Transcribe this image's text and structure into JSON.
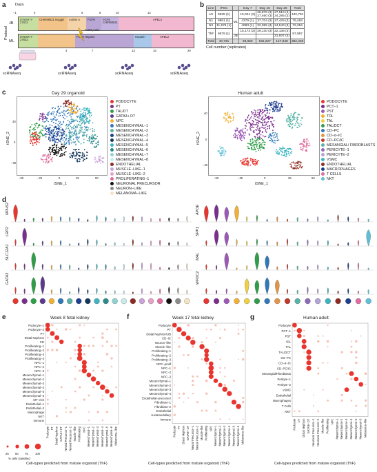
{
  "panels": {
    "a": "a",
    "b": "b",
    "c": "c",
    "d": "d",
    "e": "e",
    "f": "f",
    "g": "g"
  },
  "panel_a": {
    "days_label": "Days",
    "protocol_label": "Protocol",
    "day_ticks_top": [
      "−1",
      "0",
      "6",
      "8",
      "10",
      "14"
    ],
    "day_ticks_bottom": [
      "4",
      "7",
      "13",
      "15",
      "29"
    ],
    "rows": [
      {
        "name": "JB",
        "steps": [
          "mTeSR Y-27632",
          "CHIR99021 Noggin",
          "Activin A",
          "FGF9",
          "FGF9 CHIR99021",
          "APEL2"
        ]
      },
      {
        "name": "ML",
        "steps": [
          "mTeSR Y-27632",
          "FGF9 Heparin",
          "Heparin",
          "APEL2"
        ]
      }
    ],
    "chir_pulse": "CHIR pulse",
    "scrna_labels": [
      "scRNAseq",
      "scRNAseq",
      "scRNAseq",
      "scRNAseq"
    ]
  },
  "panel_b": {
    "headers": [
      "Line",
      "iPSC",
      "",
      "Day 7",
      "Day 15",
      "Day 29",
      "Total"
    ],
    "rows": [
      {
        "line": "AS",
        "ipsc": "9625 (1)",
        "proto": "",
        "d7": "15,024 (2)",
        "d15": [
          "28,878 (3)",
          "27,460 (3)"
        ],
        "d29": [
          "27,519 (3)",
          "24,285 (3)"
        ],
        "total": "132,791"
      },
      {
        "line": "N1",
        "ipsc": "9951 (1)",
        "proto": "ML",
        "d7": "4379 (1)",
        "d15": [
          "37,704 (3)"
        ],
        "d29": [
          "27,429 (3)"
        ],
        "total": "79,463"
      },
      {
        "line": "N2",
        "ipsc": "11,576 (1)",
        "proto": "",
        "d7": "4083 (1)",
        "d15": [
          "32,055 (3)"
        ],
        "d29": [
          "24,540 (3)"
        ],
        "total": "72,254"
      },
      {
        "line": "ThF",
        "ipsc": "9579 (1)",
        "proto": "",
        "d7": "15,173 (2)",
        "d15": [
          "29,130 (3)"
        ],
        "d29": [
          "22,138 (3)"
        ],
        "total": "97,957"
      },
      {
        "line": "",
        "ipsc": "",
        "proto": "JB",
        "d7": "",
        "d15": [
          ""
        ],
        "d29": [
          "21,937 (3)"
        ],
        "total": ""
      }
    ],
    "total_row": [
      "Total",
      "40,731",
      "38,659",
      "155,227",
      "147,848",
      "382,465"
    ],
    "caption": "Cell number (replicates)"
  },
  "panel_c": {
    "left_title": "Day 29 organoid",
    "right_title": "Human adult",
    "xlabel": "tSNE_1",
    "ylabel": "tSNE_2",
    "left_xticks": [
      "−50",
      "−25",
      "0",
      "25",
      "50"
    ],
    "left_yticks": [
      "30",
      "0",
      "−30"
    ],
    "right_xticks": [
      "−50",
      "−25",
      "0",
      "25",
      "50"
    ],
    "right_yticks": [
      "40",
      "0",
      "−40"
    ],
    "left_legend": [
      {
        "label": "PODOCYTE",
        "color": "#e8352e"
      },
      {
        "label": "PT",
        "color": "#7a2f8e"
      },
      {
        "label": "TAL/DT",
        "color": "#2e9e48"
      },
      {
        "label": "GATA3+ DT",
        "color": "#5b3a8e"
      },
      {
        "label": "NPC",
        "color": "#f2b035"
      },
      {
        "label": "MESENCHYMAL−1",
        "color": "#2f78b9"
      },
      {
        "label": "MESENCHYMAL−2",
        "color": "#56b3a5"
      },
      {
        "label": "MESENCHYMAL−3",
        "color": "#1e3e8f"
      },
      {
        "label": "MESENCHYMAL−4",
        "color": "#15375c"
      },
      {
        "label": "MESENCHYMAL−5",
        "color": "#3cb5c0"
      },
      {
        "label": "MESENCHYMAL−6",
        "color": "#2b8a8a"
      },
      {
        "label": "MESENCHYMAL−7",
        "color": "#8fd3d3"
      },
      {
        "label": "MESENCHYMAL−8",
        "color": "#c7ecee"
      },
      {
        "label": "ENDOTHELIAL",
        "color": "#8e2a20"
      },
      {
        "label": "MUSCLE−LIKE−1",
        "color": "#c9a3d9"
      },
      {
        "label": "MUSCLE−LIKE−2",
        "color": "#e7a0c8"
      },
      {
        "label": "PROLIFERATING−1",
        "color": "#e06c9f"
      },
      {
        "label": "NEURONAL PRECURSOR",
        "color": "#111111"
      },
      {
        "label": "NEURON−LIKE",
        "color": "#8a8a8a"
      },
      {
        "label": "MELANOMA−LIKE",
        "color": "#f4e4c1"
      }
    ],
    "right_legend": [
      {
        "label": "PODOCYTE",
        "color": "#e8352e"
      },
      {
        "label": "PCT−1",
        "color": "#7a2f8e"
      },
      {
        "label": "PST",
        "color": "#9b59b6"
      },
      {
        "label": "TDL",
        "color": "#f2b035"
      },
      {
        "label": "TAL",
        "color": "#f0d040"
      },
      {
        "label": "TAL/DCT",
        "color": "#2e9e48"
      },
      {
        "label": "CD−PC",
        "color": "#2f78b9"
      },
      {
        "label": "CD−α−IC",
        "color": "#e39444"
      },
      {
        "label": "CD−PC/IC",
        "color": "#c0392b"
      },
      {
        "label": "MESANGIAL/ FIBROBLASTS",
        "color": "#56b3a5"
      },
      {
        "label": "PERICYTE−1",
        "color": "#8e6bb8"
      },
      {
        "label": "PERICYTE−2",
        "color": "#b4a3d6"
      },
      {
        "label": "VSMC",
        "color": "#3cb5c0"
      },
      {
        "label": "ENDOTHELIAL",
        "color": "#8e2a20"
      },
      {
        "label": "MACROPHAGES",
        "color": "#1e3e8f"
      },
      {
        "label": "T CELLS",
        "color": "#e06c9f"
      },
      {
        "label": "NKT",
        "color": "#5ec0d8"
      }
    ]
  },
  "panel_d": {
    "left_genes": [
      "NPHS2",
      "LRP2",
      "SLC12A1",
      "GATA3"
    ],
    "right_genes": [
      "APOE",
      "SPP1",
      "MAL",
      "WFDC2"
    ]
  },
  "panel_e": {
    "title": "Week 8 fetal kidney",
    "rows": [
      "Podocyte−1",
      "Podocyte−2",
      "PT",
      "Distal Nephron",
      "CD",
      "Proliferating−1",
      "Proliferating−2",
      "Proliferating−3",
      "Proliferating−4",
      "NPC−1",
      "NPC−2",
      "NPC−3",
      "Mesenchymal−1",
      "Mesenchymal−2",
      "Mesenchymal−3",
      "Mesenchymal−4",
      "Mesenchymal−5",
      "Mesenchymal−6",
      "MT−rich",
      "Endothelial−1",
      "Endothelial−2",
      "Macrophage",
      "NKT",
      "Immune"
    ],
    "cols": [
      "Podocyte",
      "PT",
      "Distal Nephron",
      "GATA3+ DT",
      "Neural Precursor−1",
      "Neural Precursor−2",
      "Muscle−like",
      "Proliferating",
      "NPC",
      "Mesenchymal−1",
      "Mesenchymal−2",
      "Mesenchymal−3",
      "Mesenchymal−4",
      "Mesenchymal−5",
      "Mesenchymal−6",
      "Melanoma−like"
    ],
    "xlabel": "Cell-types predicted from mature organoid (ThF)",
    "size_legend_values": [
      "25",
      "50",
      "75",
      "100"
    ],
    "size_legend_caption": "% cells classified"
  },
  "panel_f": {
    "title": "Week 17 fetal kidney",
    "rows": [
      "Podocyte",
      "PT",
      "Distal Nephron/UB",
      "CD−IC",
      "Neuron−like",
      "Muscle−like",
      "Proliferating−1",
      "Proliferating−2",
      "Proliferating−3",
      "NPC−prolif",
      "NPC−1",
      "NPC−2",
      "NPC−3",
      "Mesenchymal−1",
      "Mesenchymal−2",
      "Mesenchymal−3",
      "Mesenchymal−4",
      "Endothelial−precursor",
      "Fibroblast−1",
      "Fibroblast−2",
      "Endothelial",
      "Juxtamedullary",
      "Immune"
    ],
    "cols": [
      "Podocyte",
      "PT",
      "Distal Nephron",
      "GATA3+ DT",
      "Neural Precursor−1",
      "Neural Precursor−2",
      "Muscle−like",
      "Proliferating",
      "NPC",
      "Mesenchymal−1",
      "Mesenchymal−2",
      "Mesenchymal−3",
      "Mesenchymal−4",
      "Mesenchymal−5",
      "Mesenchymal−6",
      "Melanoma−like"
    ],
    "xlabel": "Cell-types predicted from mature organoid (ThF)"
  },
  "panel_g": {
    "title": "Human adult",
    "rows": [
      "Podocyte",
      "PCT−1",
      "PST",
      "tDL",
      "TAL",
      "TAL/DCT",
      "CD−PC",
      "CD−α−IC",
      "CD−PC/IC",
      "Mesangial/Fibroblasts",
      "Perkyte−1",
      "Perkyte−2",
      "vSMC",
      "Endothelial",
      "Macrophages",
      "T Cells",
      "NKT"
    ],
    "cols": [
      "Podocyte",
      "PT",
      "Distal Nephron",
      "GATA3+ DT",
      "Neuronal Precursor−1",
      "Neuronal Precursor−2",
      "Muscle−like",
      "Proliferating",
      "NPC",
      "Mesenchymal−1",
      "Mesenchymal−2",
      "Mesenchymal−3",
      "Mesenchymal−4",
      "Mesenchymal−5",
      "Mesenchymal−6",
      "Melanoma−like"
    ],
    "xlabel": "Cell-types predicted from mature organoid (ThF)"
  },
  "colors": {
    "dot_main": "#e8352e",
    "dot_light": "#f6c1b3",
    "bar_green": "#c6dfa0",
    "bar_orange": "#f3c48a",
    "bar_purple": "#b9a6d4",
    "bar_pink": "#f2b8cf",
    "bar_blue": "#a9c7e8"
  }
}
